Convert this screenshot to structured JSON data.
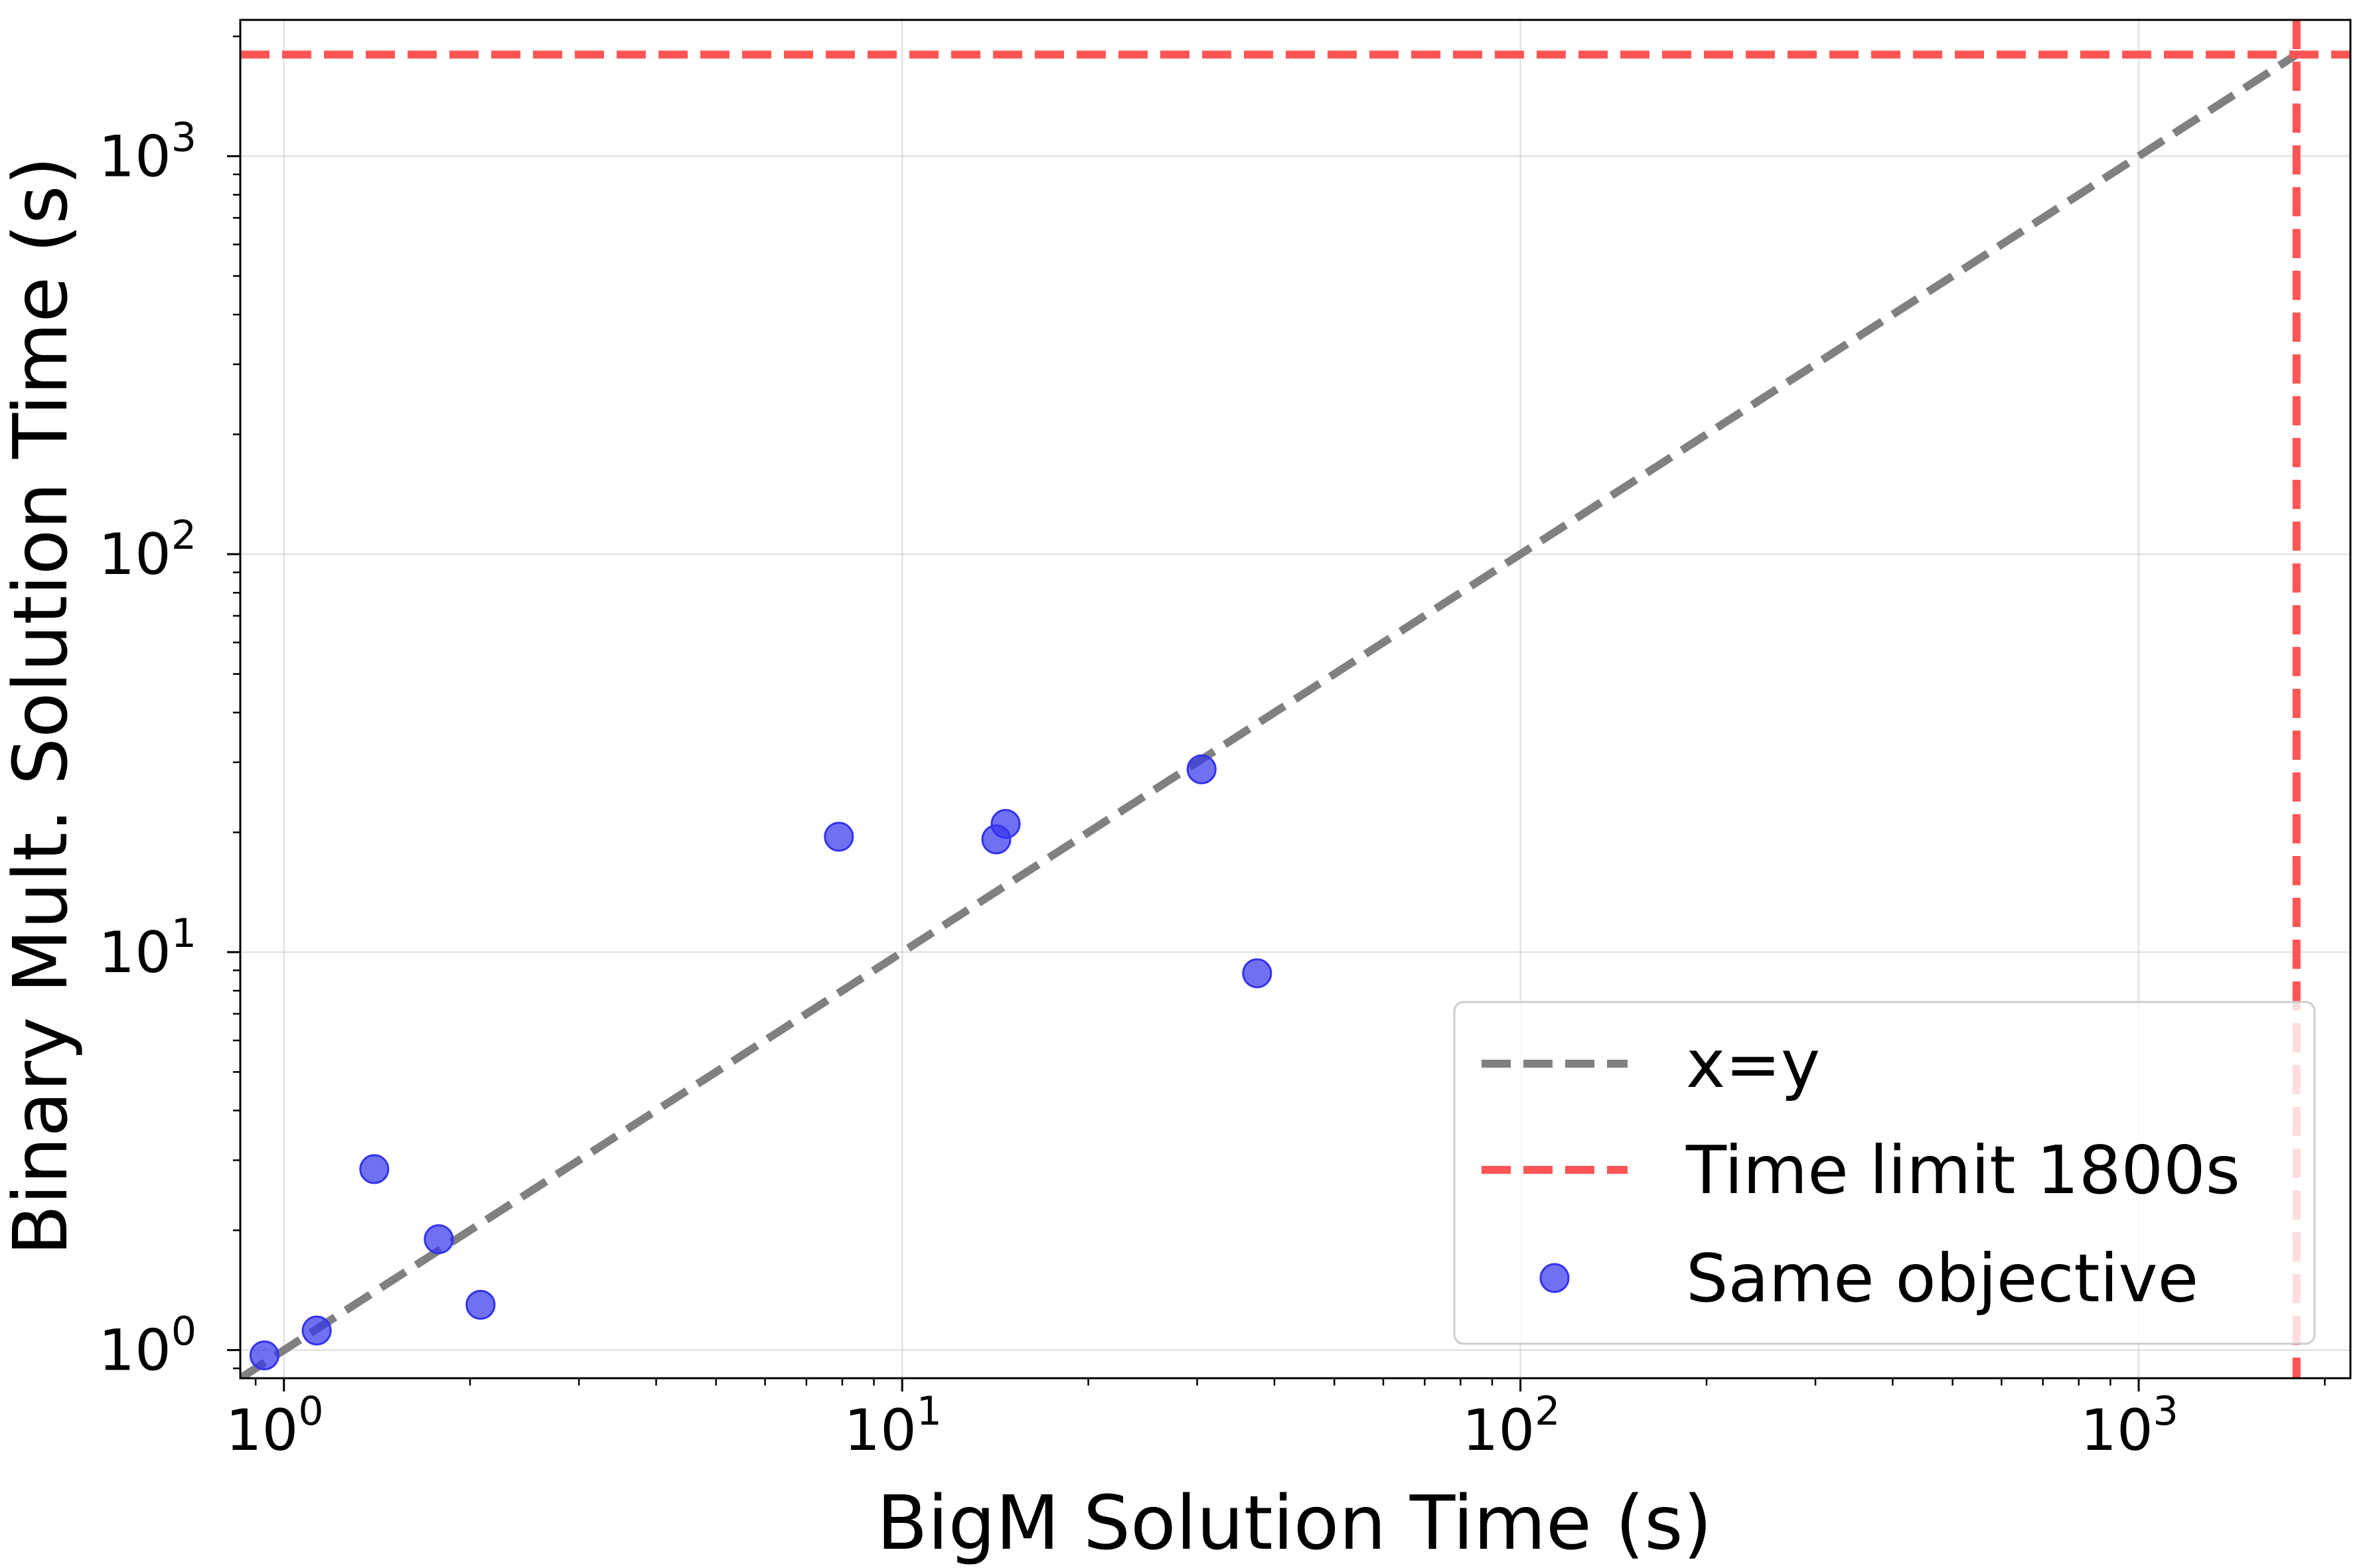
{
  "chart_data": {
    "type": "scatter",
    "title": "",
    "xlabel": "BigM Solution Time (s)",
    "ylabel": "Binary Mult. Solution Time (s)",
    "xscale": "log",
    "yscale": "log",
    "xlim": [
      0.85,
      2200
    ],
    "ylim": [
      0.85,
      2200
    ],
    "x_ticks": [
      {
        "value": 1,
        "base": "10",
        "exp": "0"
      },
      {
        "value": 10,
        "base": "10",
        "exp": "1"
      },
      {
        "value": 100,
        "base": "10",
        "exp": "2"
      },
      {
        "value": 1000,
        "base": "10",
        "exp": "3"
      }
    ],
    "y_ticks": [
      {
        "value": 1,
        "base": "10",
        "exp": "0"
      },
      {
        "value": 10,
        "base": "10",
        "exp": "1"
      },
      {
        "value": 100,
        "base": "10",
        "exp": "2"
      },
      {
        "value": 1000,
        "base": "10",
        "exp": "3"
      }
    ],
    "grid": true,
    "legend_position": "lower-right",
    "reference_lines": [
      {
        "name": "x=y",
        "kind": "diagonal",
        "color": "#808080",
        "style": "dashed"
      },
      {
        "name": "Time limit 1800s",
        "kind": "threshold",
        "value": 1800,
        "color": "#ff5555",
        "style": "dashed"
      }
    ],
    "series": [
      {
        "name": "Same objective",
        "color": "#3333ee",
        "points": [
          {
            "x": 0.93,
            "y": 0.97
          },
          {
            "x": 1.13,
            "y": 1.12
          },
          {
            "x": 1.4,
            "y": 2.85
          },
          {
            "x": 1.78,
            "y": 1.9
          },
          {
            "x": 2.08,
            "y": 1.3
          },
          {
            "x": 7.9,
            "y": 19.5
          },
          {
            "x": 14.2,
            "y": 19.2
          },
          {
            "x": 14.7,
            "y": 21.0
          },
          {
            "x": 30.5,
            "y": 28.8
          },
          {
            "x": 37.5,
            "y": 8.85
          }
        ]
      }
    ]
  }
}
